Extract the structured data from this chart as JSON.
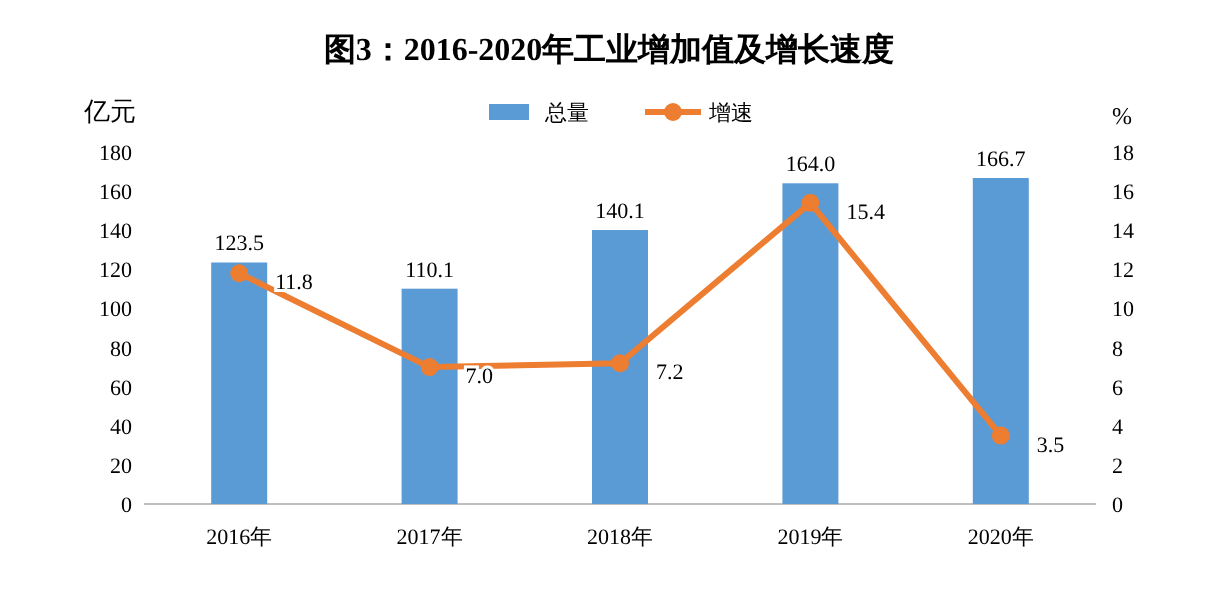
{
  "chart_data": {
    "type": "bar",
    "title": "图3：2016-2020年工业增加值及增长速度",
    "ylabel": "亿元",
    "y2label": "%",
    "categories": [
      "2016年",
      "2017年",
      "2018年",
      "2019年",
      "2020年"
    ],
    "series": [
      {
        "name": "总量",
        "color": "#5b9bd5",
        "values": [
          123.5,
          110.1,
          140.1,
          164.0,
          166.7
        ],
        "value_labels": [
          "123.5",
          "110.1",
          "140.1",
          "164.0",
          "166.7"
        ]
      },
      {
        "name": "增速",
        "type": "line",
        "axis": "y2",
        "color": "#ed7d31",
        "marker": "circle",
        "values": [
          11.8,
          7.0,
          7.2,
          15.4,
          3.5
        ],
        "value_labels": [
          "11.8",
          "7.0",
          "7.2",
          "15.4",
          "3.5"
        ]
      }
    ],
    "ylim": [
      0,
      180
    ],
    "yticks": [
      0,
      20,
      40,
      60,
      80,
      100,
      120,
      140,
      160,
      180
    ],
    "y2lim": [
      0,
      18
    ],
    "y2ticks": [
      0,
      2,
      4,
      6,
      8,
      10,
      12,
      14,
      16,
      18
    ],
    "legend": "top",
    "grid": false
  }
}
